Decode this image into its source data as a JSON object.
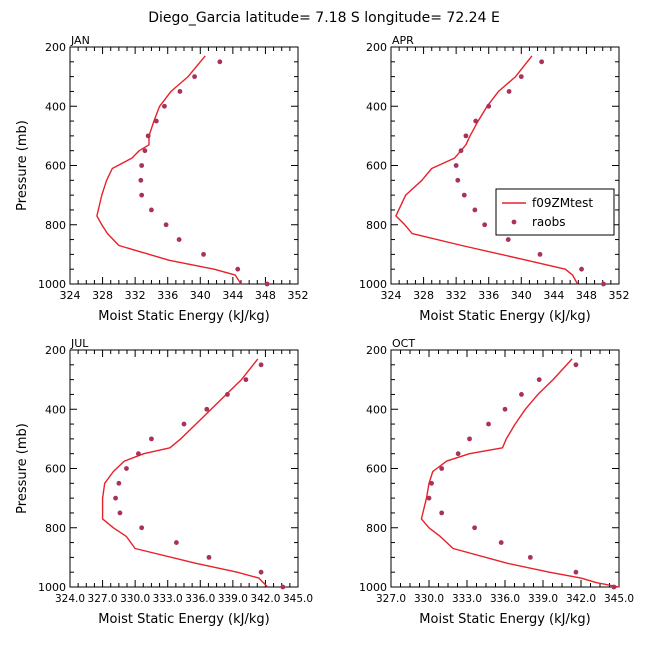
{
  "figure": {
    "title": "Diego_Garcia   latitude=  7.18 S  longitude= 72.24 E"
  },
  "legend": {
    "model_label": "f09ZMtest",
    "obs_label": "raobs",
    "placement": "inside APR panel, right"
  },
  "colors": {
    "model_line": "#e8202a",
    "obs_marker": "#a8325a",
    "axes": "#000000"
  },
  "chart_data": [
    {
      "type": "line",
      "panel": "JAN",
      "title": "JAN",
      "xlabel": "Moist Static Energy (kJ/kg)",
      "ylabel": "Pressure (mb)",
      "xlim": [
        324,
        352
      ],
      "ylim": [
        1000,
        200
      ],
      "y_inverted": true,
      "xticks": [
        324,
        328,
        332,
        336,
        340,
        344,
        348,
        352
      ],
      "xtick_labels": [
        "324",
        "328",
        "332",
        "336",
        "340",
        "344",
        "348",
        "352"
      ],
      "yticks": [
        200,
        400,
        600,
        800,
        1000
      ],
      "ytick_labels": [
        "200",
        "400",
        "600",
        "800",
        "1000"
      ],
      "series": [
        {
          "name": "f09ZMtest",
          "kind": "line",
          "x": [
            340.6,
            338.5,
            336.4,
            335.0,
            334.3,
            333.7,
            333.7,
            332.5,
            331.6,
            329.2,
            328.5,
            327.9,
            327.3,
            327.9,
            328.6,
            330.0,
            336.2,
            341.7,
            344.3,
            345.0
          ],
          "y": [
            230,
            300,
            350,
            400,
            450,
            500,
            530,
            550,
            575,
            610,
            650,
            700,
            770,
            800,
            830,
            870,
            920,
            950,
            970,
            1000
          ]
        },
        {
          "name": "raobs",
          "kind": "scatter",
          "x": [
            342.4,
            339.3,
            337.5,
            335.6,
            334.6,
            333.6,
            333.2,
            332.8,
            332.7,
            332.8,
            334.0,
            335.8,
            337.4,
            340.4,
            344.6,
            348.2
          ],
          "y": [
            250,
            300,
            350,
            400,
            450,
            500,
            550,
            600,
            650,
            700,
            750,
            800,
            850,
            900,
            950,
            1000
          ]
        }
      ]
    },
    {
      "type": "line",
      "panel": "APR",
      "title": "APR",
      "xlabel": "Moist Static Energy (kJ/kg)",
      "ylabel": "",
      "xlim": [
        324,
        352
      ],
      "ylim": [
        1000,
        200
      ],
      "y_inverted": true,
      "xticks": [
        324,
        328,
        332,
        336,
        340,
        344,
        348,
        352
      ],
      "xtick_labels": [
        "324",
        "328",
        "332",
        "336",
        "340",
        "344",
        "348",
        "352"
      ],
      "yticks": [
        200,
        400,
        600,
        800,
        1000
      ],
      "ytick_labels": [
        "200",
        "400",
        "600",
        "800",
        "1000"
      ],
      "series": [
        {
          "name": "f09ZMtest",
          "kind": "line",
          "x": [
            341.3,
            339.3,
            337.2,
            335.8,
            334.7,
            333.7,
            333.2,
            332.6,
            331.8,
            329.0,
            327.8,
            325.8,
            324.6,
            325.7,
            326.6,
            332.7,
            340.7,
            345.4,
            346.3,
            346.9
          ],
          "y": [
            230,
            300,
            350,
            400,
            450,
            500,
            530,
            550,
            575,
            610,
            650,
            700,
            770,
            800,
            830,
            870,
            920,
            950,
            970,
            1000
          ]
        },
        {
          "name": "raobs",
          "kind": "scatter",
          "x": [
            342.5,
            340.0,
            338.5,
            336.0,
            334.4,
            333.2,
            332.6,
            332.0,
            332.2,
            333.0,
            334.3,
            335.5,
            338.4,
            342.3,
            347.4,
            350.1
          ],
          "y": [
            250,
            300,
            350,
            400,
            450,
            500,
            550,
            600,
            650,
            700,
            750,
            800,
            850,
            900,
            950,
            1000
          ]
        }
      ]
    },
    {
      "type": "line",
      "panel": "JUL",
      "title": "JUL",
      "xlabel": "Moist Static Energy (kJ/kg)",
      "ylabel": "Pressure (mb)",
      "xlim": [
        324.0,
        345.0
      ],
      "ylim": [
        1000,
        200
      ],
      "y_inverted": true,
      "xticks": [
        324.0,
        327.0,
        330.0,
        333.0,
        336.0,
        339.0,
        342.0,
        345.0
      ],
      "xtick_labels": [
        "324.0",
        "327.0",
        "330.0",
        "333.0",
        "336.0",
        "339.0",
        "342.0",
        "345.0"
      ],
      "yticks": [
        200,
        400,
        600,
        800,
        1000
      ],
      "ytick_labels": [
        "200",
        "400",
        "600",
        "800",
        "1000"
      ],
      "series": [
        {
          "name": "f09ZMtest",
          "kind": "line",
          "x": [
            341.3,
            339.8,
            338.4,
            337.0,
            335.6,
            334.2,
            333.2,
            330.8,
            329.0,
            328.0,
            327.2,
            327.0,
            327.0,
            328.0,
            329.2,
            330.0,
            335.6,
            339.4,
            341.4,
            342.2
          ],
          "y": [
            230,
            300,
            350,
            400,
            450,
            500,
            530,
            550,
            575,
            610,
            650,
            700,
            770,
            800,
            830,
            870,
            920,
            950,
            970,
            1000
          ]
        },
        {
          "name": "raobs",
          "kind": "scatter",
          "x": [
            341.6,
            340.2,
            338.5,
            336.6,
            334.5,
            331.5,
            330.3,
            329.2,
            328.5,
            328.2,
            328.6,
            330.6,
            333.8,
            336.8,
            341.6,
            343.6
          ],
          "y": [
            250,
            300,
            350,
            400,
            450,
            500,
            550,
            600,
            650,
            700,
            750,
            800,
            850,
            900,
            950,
            1000
          ]
        }
      ]
    },
    {
      "type": "line",
      "panel": "OCT",
      "title": "OCT",
      "xlabel": "Moist Static Energy (kJ/kg)",
      "ylabel": "",
      "xlim": [
        327.0,
        345.0
      ],
      "ylim": [
        1000,
        200
      ],
      "y_inverted": true,
      "xticks": [
        327.0,
        330.0,
        333.0,
        336.0,
        339.0,
        342.0,
        345.0
      ],
      "xtick_labels": [
        "327.0",
        "330.0",
        "333.0",
        "336.0",
        "339.0",
        "342.0",
        "345.0"
      ],
      "yticks": [
        200,
        400,
        600,
        800,
        1000
      ],
      "ytick_labels": [
        "200",
        "400",
        "600",
        "800",
        "1000"
      ],
      "series": [
        {
          "name": "f09ZMtest",
          "kind": "line",
          "x": [
            341.3,
            339.8,
            338.6,
            337.6,
            336.8,
            336.1,
            335.8,
            333.2,
            331.4,
            330.3,
            330.0,
            329.8,
            329.4,
            330.0,
            330.9,
            331.9,
            336.2,
            339.5,
            342.0,
            343.2,
            345.0
          ],
          "y": [
            230,
            300,
            350,
            400,
            450,
            500,
            530,
            550,
            575,
            610,
            650,
            700,
            770,
            800,
            830,
            870,
            920,
            950,
            970,
            985,
            1000
          ]
        },
        {
          "name": "raobs",
          "kind": "scatter",
          "x": [
            341.6,
            338.7,
            337.3,
            336.0,
            334.7,
            333.2,
            332.3,
            331.0,
            330.2,
            330.0,
            331.0,
            333.6,
            335.7,
            338.0,
            341.6,
            344.6
          ],
          "y": [
            250,
            300,
            350,
            400,
            450,
            500,
            550,
            600,
            650,
            700,
            750,
            800,
            850,
            900,
            950,
            1000
          ]
        }
      ]
    }
  ]
}
